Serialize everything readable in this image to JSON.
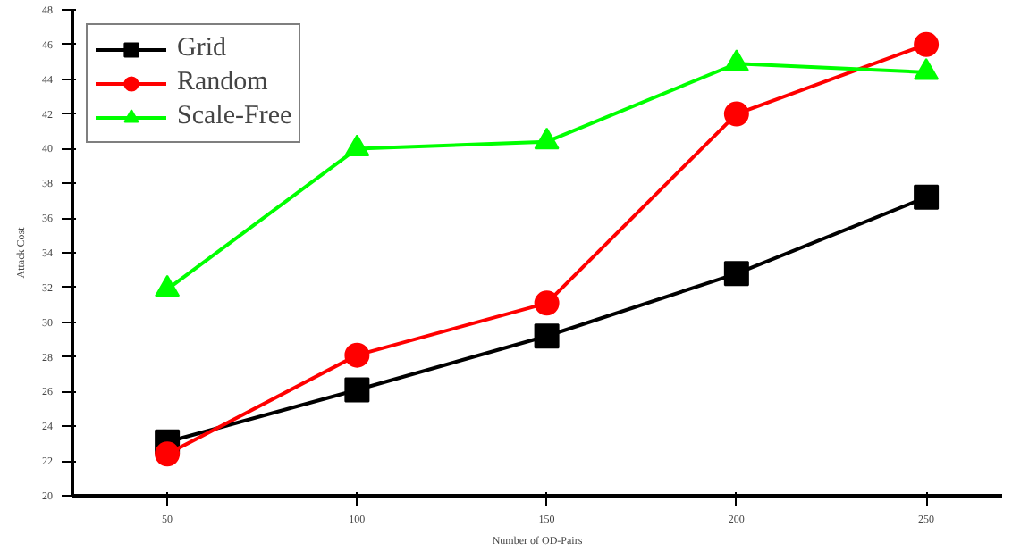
{
  "chart_data": {
    "type": "line",
    "xlabel": "Number of OD-Pairs",
    "ylabel": "Attack Cost",
    "x": [
      50,
      100,
      150,
      200,
      250
    ],
    "series": [
      {
        "name": "Grid",
        "color": "#000000",
        "marker": "square",
        "values": [
          23.1,
          26.1,
          29.2,
          32.8,
          37.2
        ]
      },
      {
        "name": "Random",
        "color": "#ff0000",
        "marker": "circle",
        "values": [
          22.4,
          28.1,
          31.1,
          42.0,
          46.0
        ]
      },
      {
        "name": "Scale-Free",
        "color": "#00ff00",
        "marker": "triangle",
        "values": [
          31.9,
          40.0,
          40.4,
          44.9,
          44.4
        ]
      }
    ],
    "xlim": [
      25,
      270
    ],
    "xticks": [
      50,
      100,
      150,
      200,
      250
    ],
    "ylim": [
      20,
      48
    ],
    "yticks": [
      20,
      22,
      24,
      26,
      28,
      30,
      32,
      34,
      36,
      38,
      40,
      42,
      44,
      46,
      48
    ],
    "grid": false,
    "legend": "top left",
    "line_style": "solid"
  }
}
